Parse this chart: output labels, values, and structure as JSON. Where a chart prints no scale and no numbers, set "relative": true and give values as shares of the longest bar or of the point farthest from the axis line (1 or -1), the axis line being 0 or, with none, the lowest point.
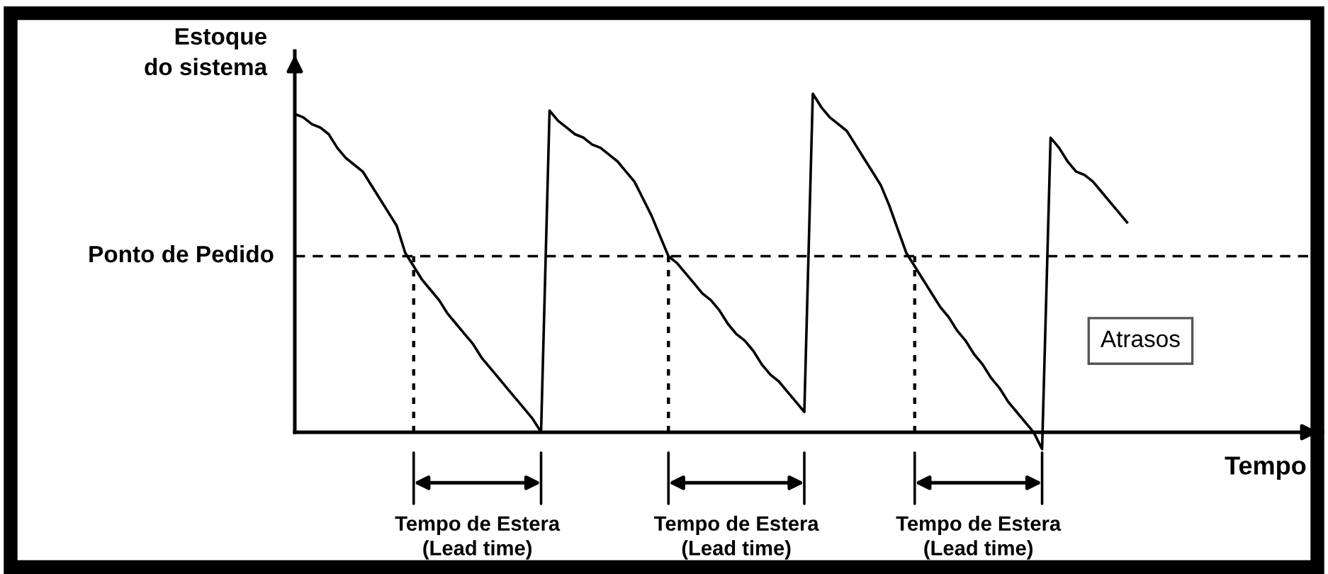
{
  "chart_data": {
    "type": "line",
    "relative": true,
    "xlabel": "Tempo",
    "ylabel": "Estoque\ndo sistema",
    "categories": [
      null,
      null,
      null,
      null,
      null,
      null,
      null,
      null,
      null,
      null,
      null,
      null,
      null,
      null,
      null,
      null,
      null,
      null,
      null,
      null,
      null,
      null,
      null,
      null,
      null,
      null,
      null,
      null,
      null,
      null,
      null,
      null,
      null,
      null,
      null,
      null,
      null,
      null,
      null,
      null,
      null,
      null,
      null,
      null,
      null,
      null,
      null,
      null,
      null,
      null,
      null,
      null,
      null,
      null,
      null,
      null,
      null,
      null,
      null,
      null,
      null,
      null,
      null,
      null,
      null,
      null,
      null,
      null,
      null,
      null,
      null,
      null,
      null,
      null,
      null,
      null,
      null,
      null,
      null,
      null,
      null,
      null,
      null,
      null,
      null,
      null,
      null,
      null,
      null,
      null,
      null,
      null,
      null,
      null,
      null,
      null,
      null,
      null,
      null,
      null,
      null,
      null,
      null,
      null,
      null,
      null,
      null,
      null,
      null,
      null,
      null,
      null,
      null,
      null,
      null,
      null,
      null,
      null,
      null,
      null,
      null,
      null
    ],
    "series": [
      {
        "color": "#000000",
        "values": [
          0.94,
          0.93,
          0.91,
          0.9,
          0.88,
          0.84,
          0.81,
          0.79,
          0.77,
          0.73,
          0.69,
          0.65,
          0.61,
          0.53,
          0.49,
          0.45,
          0.42,
          0.39,
          0.35,
          0.32,
          0.29,
          0.26,
          0.22,
          0.19,
          0.16,
          0.13,
          0.1,
          0.07,
          0.04,
          0,
          0.95,
          0.92,
          0.9,
          0.88,
          0.87,
          0.85,
          0.84,
          0.82,
          0.8,
          0.77,
          0.74,
          0.69,
          0.64,
          0.58,
          0.52,
          0.5,
          0.47,
          0.44,
          0.41,
          0.39,
          0.36,
          0.32,
          0.29,
          0.27,
          0.24,
          0.2,
          0.17,
          0.15,
          0.12,
          0.09,
          0.06,
          1.0,
          0.96,
          0.93,
          0.91,
          0.89,
          0.85,
          0.81,
          0.77,
          0.73,
          0.67,
          0.6,
          0.53,
          0.49,
          0.45,
          0.41,
          0.37,
          0.34,
          0.3,
          0.27,
          0.23,
          0.2,
          0.16,
          0.13,
          0.09,
          0.06,
          0.03,
          0,
          -0.05,
          0.87,
          0.84,
          0.8,
          0.77,
          0.76,
          0.74,
          0.71,
          0.68,
          0.65,
          0.62,
          null,
          null,
          null,
          null,
          null,
          null,
          null,
          null,
          null,
          null,
          null,
          null,
          null,
          null,
          null,
          null,
          null,
          null,
          null,
          null,
          null,
          null,
          null
        ]
      }
    ],
    "marker": "none",
    "line_style": "solid",
    "ref_lines": [
      {
        "axis": "y",
        "value": 0.52,
        "label": "Ponto de Pedido",
        "line_style": "dashed"
      }
    ],
    "annotations": [
      "Tempo de Estera\n(Lead time)",
      "Tempo de Estera\n(Lead time)",
      "Tempo de Estera\n(Lead time)",
      "Atrasos"
    ]
  }
}
